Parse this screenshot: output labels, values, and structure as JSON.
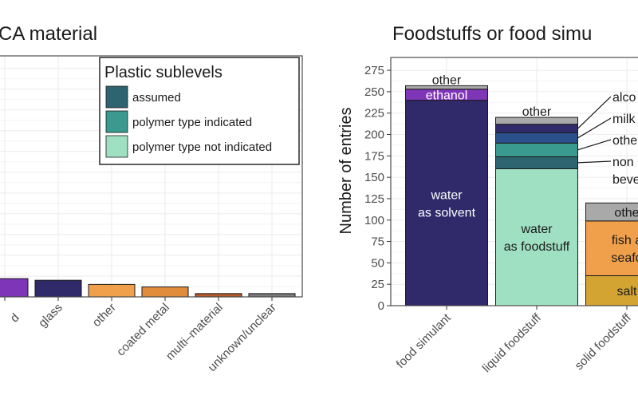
{
  "colors": {
    "plastic_assumed": "#2e6470",
    "plastic_polymer_indicated": "#3a9a8f",
    "plastic_polymer_not_indicated": "#9fe0c2",
    "paper": "#7f35b8",
    "glass": "#302a6a",
    "other": "#f0a04a",
    "coated_metal": "#e08c3c",
    "multi_material": "#b65a2c",
    "unknown": "#7b7b7b",
    "fs_water_solvent": "#302a6a",
    "fs_ethanol": "#7f35b8",
    "fs_other_grey": "#a9a9a9",
    "fs_alcoholic": "#302a6a",
    "fs_milk": "#2a4f8a",
    "fs_other_bev": "#3a9a8f",
    "fs_nonalc": "#2e6470",
    "fs_water_foodstuff": "#9fe0c2",
    "fs_fish": "#f0a04a",
    "fs_salt": "#d4a432",
    "bar_stroke": "#1a1a1a",
    "grid": "#ebebeb",
    "panel_border": "#4d4d4d"
  },
  "chart_data": [
    {
      "type": "bar",
      "title": "CA material",
      "categories": [
        "d &",
        "glass",
        "other",
        "coated metal",
        "multi–material",
        "unknown/unclear"
      ],
      "category_tick_lines": [
        [
          "",
          "d"
        ],
        [
          "glass"
        ],
        [
          "other"
        ],
        [
          "coated metal"
        ],
        [
          "multi–material"
        ],
        [
          "unknown/unclear"
        ]
      ],
      "values": [
        22,
        20,
        15,
        12,
        4,
        4
      ],
      "ylim": [
        0,
        290
      ],
      "legend": {
        "title": "Plastic sublevels",
        "placement": "top-right",
        "entries": [
          "assumed",
          "polymer type indicated",
          "polymer type not indicated"
        ]
      }
    },
    {
      "type": "bar",
      "stacked": true,
      "title": "Foodstuffs or food simu",
      "ylabel": "Number of entries",
      "xlabel": "",
      "ylim": [
        0,
        290
      ],
      "yticks": [
        0,
        25,
        50,
        75,
        100,
        125,
        150,
        175,
        200,
        225,
        250,
        275
      ],
      "categories": [
        "food simulant",
        "liquid foodstuff",
        "solid foodstuff"
      ],
      "stacks": [
        {
          "category": "food simulant",
          "segments": [
            {
              "label_lines": [
                "water",
                "as solvent"
              ],
              "value": 240,
              "color_key": "fs_water_solvent",
              "label_color": "#ffffff"
            },
            {
              "label_lines": [
                "ethanol"
              ],
              "value": 13,
              "color_key": "fs_ethanol",
              "label_color": "#ffffff"
            },
            {
              "label_lines": [
                "other"
              ],
              "value": 4,
              "color_key": "fs_other_grey",
              "label_color": "#1a1a1a",
              "label_above": true
            }
          ]
        },
        {
          "category": "liquid foodstuff",
          "segments": [
            {
              "label_lines": [
                "water",
                "as foodstuff"
              ],
              "value": 160,
              "color_key": "fs_water_foodstuff",
              "label_color": "#1a1a1a"
            },
            {
              "label_lines": [],
              "value": 14,
              "color_key": "fs_nonalc"
            },
            {
              "label_lines": [],
              "value": 16,
              "color_key": "fs_other_bev"
            },
            {
              "label_lines": [],
              "value": 12,
              "color_key": "fs_milk"
            },
            {
              "label_lines": [],
              "value": 10,
              "color_key": "fs_alcoholic"
            },
            {
              "label_lines": [
                "other"
              ],
              "value": 8,
              "color_key": "fs_other_grey",
              "label_color": "#1a1a1a",
              "label_above": true
            }
          ]
        },
        {
          "category": "solid foodstuff",
          "segments": [
            {
              "label_lines": [
                "salt"
              ],
              "value": 35,
              "color_key": "fs_salt",
              "label_color": "#1a1a1a"
            },
            {
              "label_lines": [
                "fish a",
                "seafo"
              ],
              "value": 64,
              "color_key": "fs_fish",
              "label_color": "#1a1a1a"
            },
            {
              "label_lines": [
                "othe"
              ],
              "value": 21,
              "color_key": "fs_other_grey",
              "label_color": "#1a1a1a"
            }
          ]
        }
      ],
      "callouts": [
        {
          "label_lines": [
            "alco"
          ]
        },
        {
          "label_lines": [
            "milk"
          ]
        },
        {
          "label_lines": [
            "othe"
          ]
        },
        {
          "label_lines": [
            "non",
            "beve"
          ]
        }
      ]
    }
  ]
}
